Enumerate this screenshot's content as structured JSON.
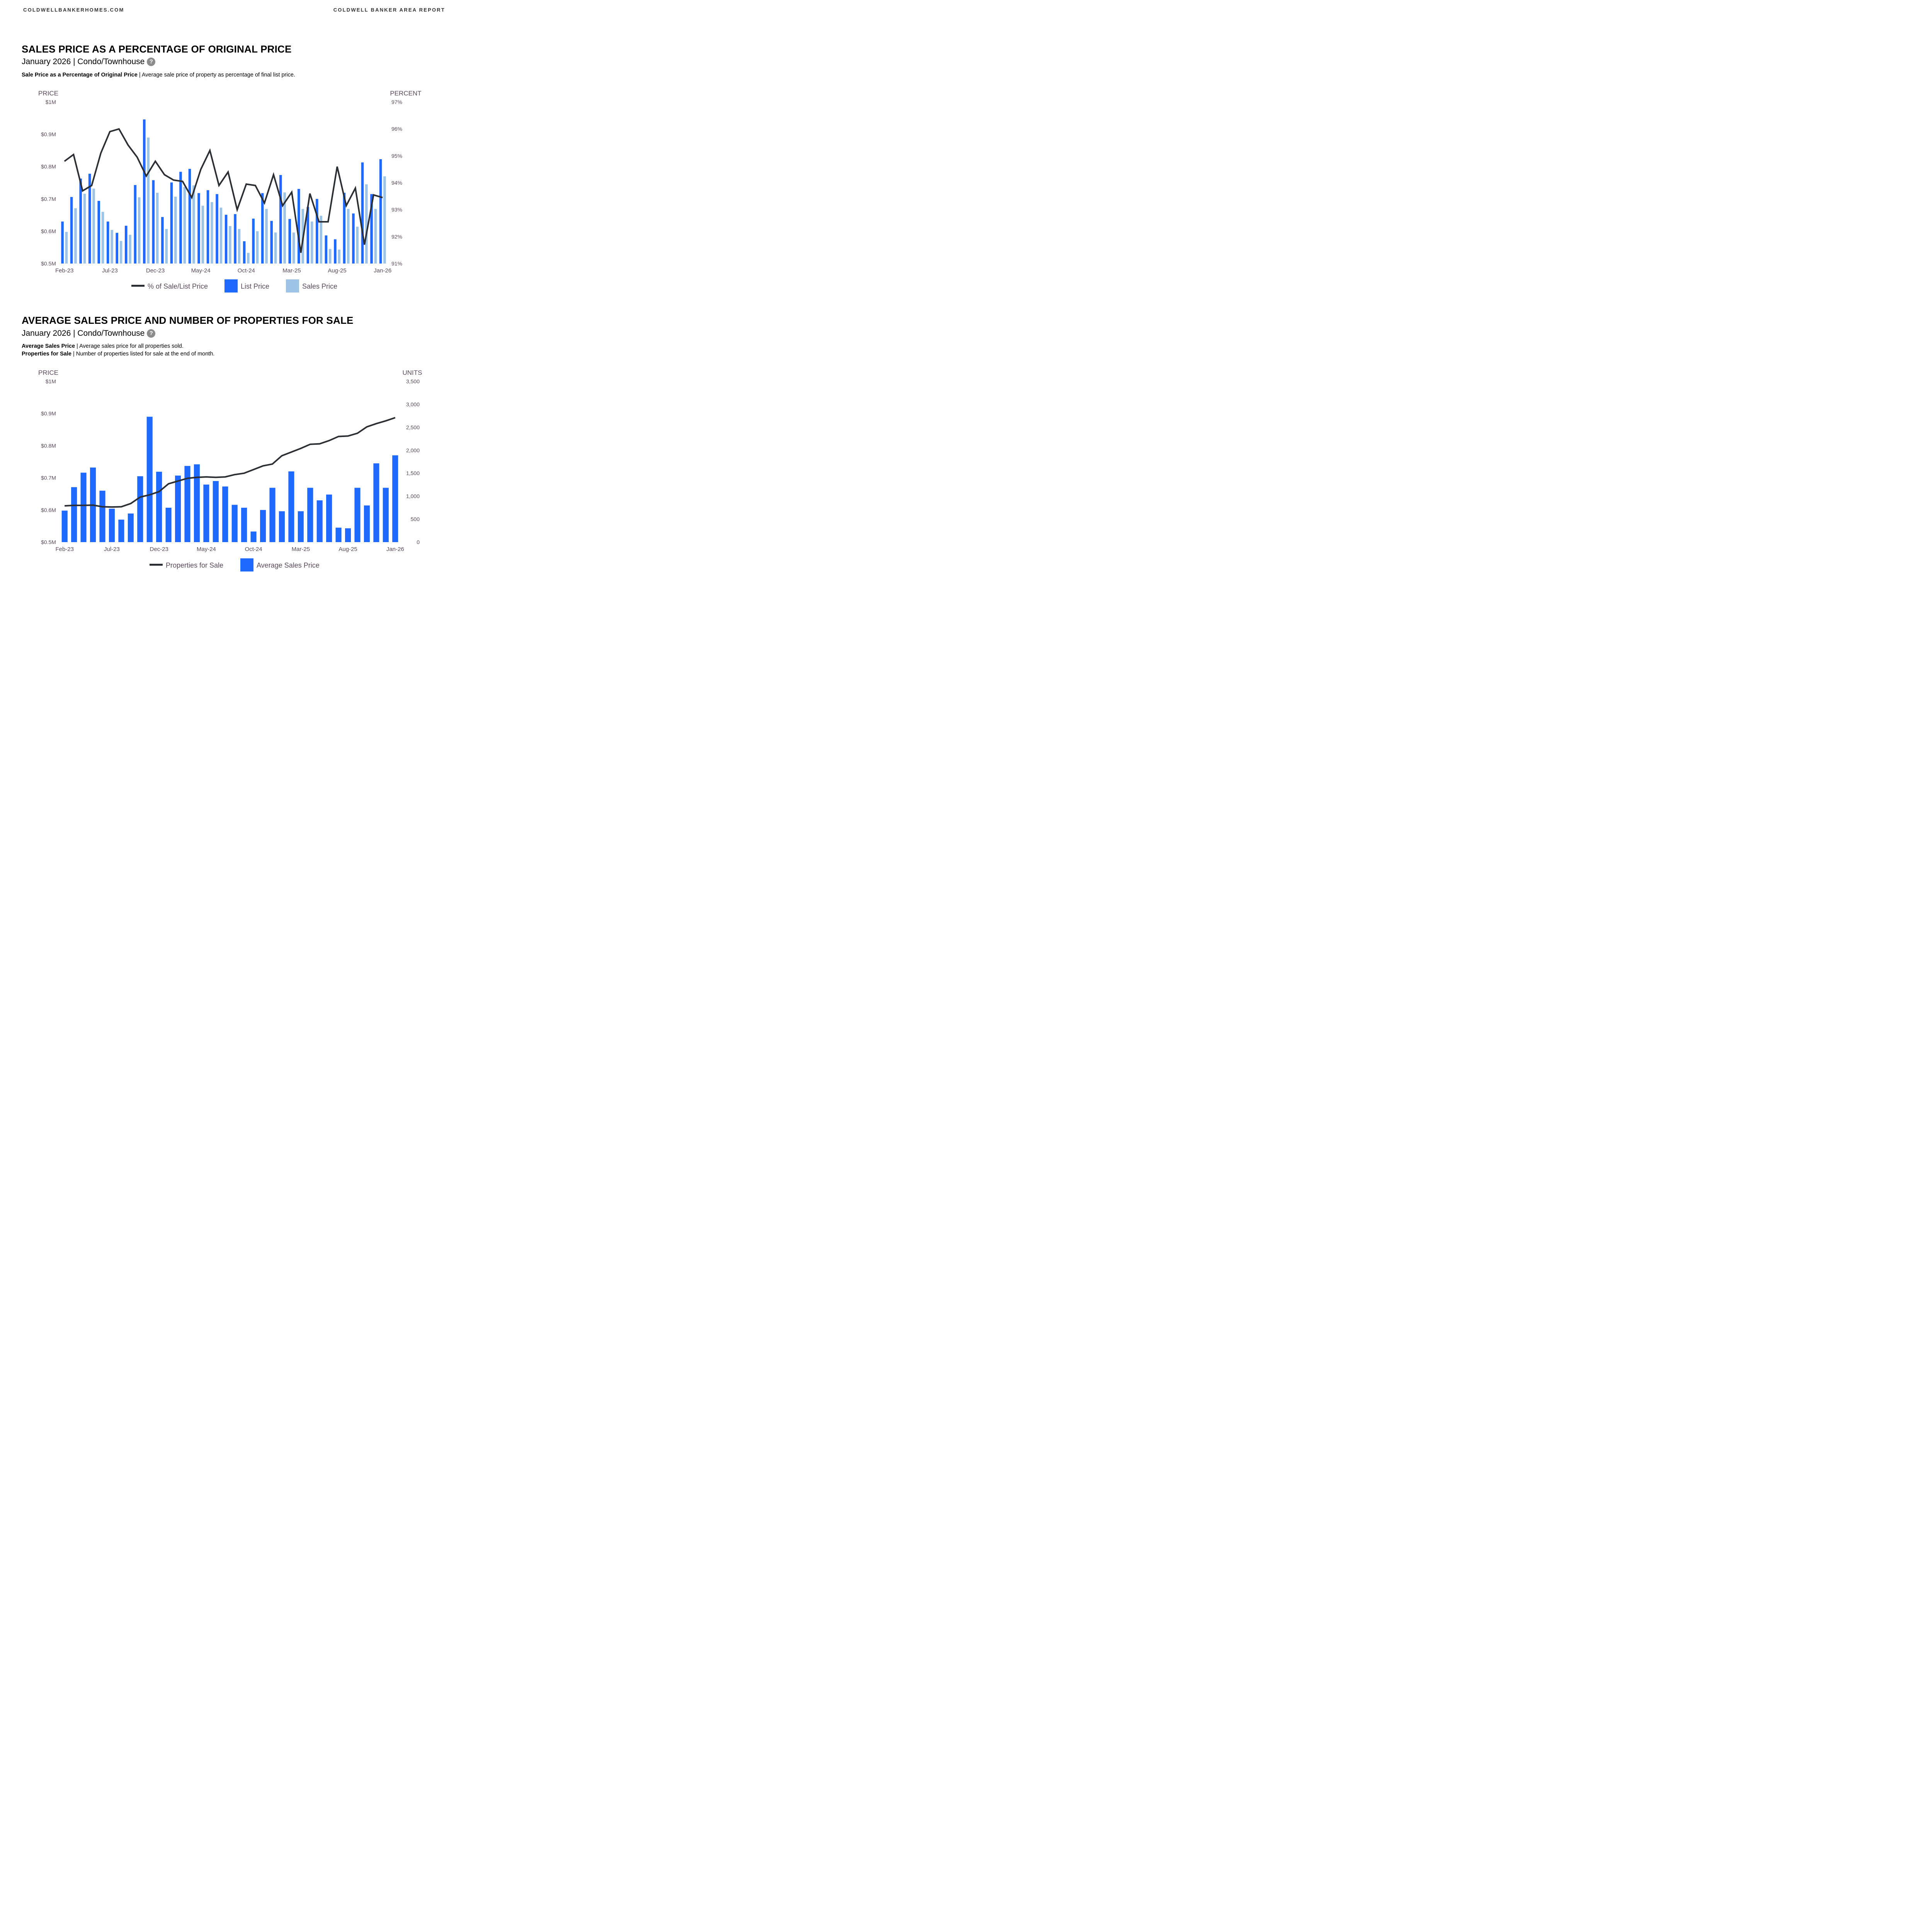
{
  "header": {
    "left": "COLDWELLBANKERHOMES.COM",
    "right": "COLDWELL BANKER AREA REPORT"
  },
  "colors": {
    "list_price": "#1f69ff",
    "sales_price": "#9dc3e6",
    "line": "#2b2f33",
    "axis_text": "#5a4a5a"
  },
  "section1": {
    "title": "SALES PRICE AS A PERCENTAGE OF ORIGINAL PRICE",
    "subtitle": "January 2026 | Condo/Townhouse",
    "help_icon": "?",
    "desc_bold": "Sale Price as a Percentage of Original Price",
    "desc_text": " | Average sale price of property as percentage of final list price."
  },
  "section2": {
    "title": "AVERAGE SALES PRICE AND NUMBER OF PROPERTIES FOR SALE",
    "subtitle": "January 2026 | Condo/Townhouse",
    "help_icon": "?",
    "desc1_bold": "Average Sales Price",
    "desc1_text": " | Average sales price for all properties sold.",
    "desc2_bold": "Properties for Sale",
    "desc2_text": " | Number of properties listed for sale at the end of month."
  },
  "chart_data": [
    {
      "type": "bar",
      "title": "Sales Price as a Percentage of Original Price",
      "left_axis_title": "PRICE",
      "right_axis_title": "PERCENT",
      "left_ticks": [
        "$0.5M",
        "$0.6M",
        "$0.7M",
        "$0.8M",
        "$0.9M",
        "$1M"
      ],
      "left_tick_values": [
        0.5,
        0.6,
        0.7,
        0.8,
        0.9,
        1.0
      ],
      "right_ticks": [
        "91%",
        "92%",
        "93%",
        "94%",
        "95%",
        "96%",
        "97%"
      ],
      "right_tick_values": [
        91,
        92,
        93,
        94,
        95,
        96,
        97
      ],
      "ylim_left": [
        0.5,
        1.0
      ],
      "ylim_right": [
        91,
        97
      ],
      "x_tick_labels": [
        "Feb-23",
        "Jul-23",
        "Dec-23",
        "May-24",
        "Oct-24",
        "Mar-25",
        "Aug-25",
        "Jan-26"
      ],
      "x_tick_indices": [
        0,
        5,
        10,
        15,
        20,
        25,
        30,
        35
      ],
      "categories": [
        "Feb-23",
        "Mar-23",
        "Apr-23",
        "May-23",
        "Jun-23",
        "Jul-23",
        "Aug-23",
        "Sep-23",
        "Oct-23",
        "Nov-23",
        "Dec-23",
        "Jan-24",
        "Feb-24",
        "Mar-24",
        "Apr-24",
        "May-24",
        "Jun-24",
        "Jul-24",
        "Aug-24",
        "Sep-24",
        "Oct-24",
        "Nov-24",
        "Dec-24",
        "Jan-25",
        "Feb-25",
        "Mar-25",
        "Apr-25",
        "May-25",
        "Jun-25",
        "Jul-25",
        "Aug-25",
        "Sep-25",
        "Oct-25",
        "Nov-25",
        "Dec-25",
        "Jan-26"
      ],
      "series": [
        {
          "name": "List Price",
          "kind": "bar",
          "axis": "left",
          "unit": "$M",
          "values": [
            0.63,
            0.706,
            0.763,
            0.778,
            0.694,
            0.63,
            0.595,
            0.617,
            0.743,
            0.946,
            0.758,
            0.644,
            0.751,
            0.784,
            0.793,
            0.718,
            0.727,
            0.715,
            0.651,
            0.653,
            0.569,
            0.639,
            0.718,
            0.632,
            0.774,
            0.638,
            0.731,
            0.675,
            0.7,
            0.587,
            0.575,
            0.719,
            0.655,
            0.813,
            0.715,
            0.823
          ]
        },
        {
          "name": "Sales Price",
          "kind": "bar",
          "axis": "left",
          "unit": "$M",
          "values": [
            0.598,
            0.671,
            0.716,
            0.732,
            0.66,
            0.604,
            0.57,
            0.589,
            0.705,
            0.89,
            0.719,
            0.607,
            0.707,
            0.737,
            0.742,
            0.679,
            0.69,
            0.673,
            0.616,
            0.607,
            0.533,
            0.6,
            0.669,
            0.596,
            0.72,
            0.596,
            0.669,
            0.63,
            0.648,
            0.545,
            0.543,
            0.669,
            0.614,
            0.745,
            0.669,
            0.77
          ]
        },
        {
          "name": "% of Sale/List Price",
          "kind": "line",
          "axis": "right",
          "unit": "%",
          "values": [
            94.8,
            95.05,
            93.7,
            93.9,
            95.1,
            95.9,
            96.0,
            95.4,
            94.95,
            94.25,
            94.8,
            94.3,
            94.1,
            94.05,
            93.45,
            94.5,
            95.2,
            93.9,
            94.4,
            93.0,
            93.95,
            93.9,
            93.25,
            94.3,
            93.15,
            93.65,
            91.4,
            93.6,
            92.55,
            92.55,
            94.6,
            93.15,
            93.8,
            91.7,
            93.55,
            93.45
          ]
        }
      ],
      "legend": [
        "% of Sale/List Price",
        "List Price",
        "Sales Price"
      ],
      "legend_position": "bottom-center",
      "grid": false
    },
    {
      "type": "bar",
      "title": "Average Sales Price and Number of Properties for Sale",
      "left_axis_title": "PRICE",
      "right_axis_title": "UNITS",
      "left_ticks": [
        "$0.5M",
        "$0.6M",
        "$0.7M",
        "$0.8M",
        "$0.9M",
        "$1M"
      ],
      "left_tick_values": [
        0.5,
        0.6,
        0.7,
        0.8,
        0.9,
        1.0
      ],
      "right_ticks": [
        "0",
        "500",
        "1,000",
        "1,500",
        "2,000",
        "2,500",
        "3,000",
        "3,500"
      ],
      "right_tick_values": [
        0,
        500,
        1000,
        1500,
        2000,
        2500,
        3000,
        3500
      ],
      "ylim_left": [
        0.5,
        1.0
      ],
      "ylim_right": [
        0,
        3500
      ],
      "x_tick_labels": [
        "Feb-23",
        "Jul-23",
        "Dec-23",
        "May-24",
        "Oct-24",
        "Mar-25",
        "Aug-25",
        "Jan-26"
      ],
      "x_tick_indices": [
        0,
        5,
        10,
        15,
        20,
        25,
        30,
        35
      ],
      "categories": [
        "Feb-23",
        "Mar-23",
        "Apr-23",
        "May-23",
        "Jun-23",
        "Jul-23",
        "Aug-23",
        "Sep-23",
        "Oct-23",
        "Nov-23",
        "Dec-23",
        "Jan-24",
        "Feb-24",
        "Mar-24",
        "Apr-24",
        "May-24",
        "Jun-24",
        "Jul-24",
        "Aug-24",
        "Sep-24",
        "Oct-24",
        "Nov-24",
        "Dec-24",
        "Jan-25",
        "Feb-25",
        "Mar-25",
        "Apr-25",
        "May-25",
        "Jun-25",
        "Jul-25",
        "Aug-25",
        "Sep-25",
        "Oct-25",
        "Nov-25",
        "Dec-25",
        "Jan-26"
      ],
      "series": [
        {
          "name": "Average Sales Price",
          "kind": "bar",
          "axis": "left",
          "unit": "$M",
          "values": [
            0.598,
            0.671,
            0.716,
            0.732,
            0.66,
            0.604,
            0.57,
            0.589,
            0.705,
            0.89,
            0.719,
            0.607,
            0.707,
            0.737,
            0.742,
            0.679,
            0.69,
            0.673,
            0.616,
            0.607,
            0.533,
            0.6,
            0.669,
            0.596,
            0.72,
            0.596,
            0.669,
            0.63,
            0.648,
            0.545,
            0.543,
            0.669,
            0.614,
            0.745,
            0.669,
            0.77
          ]
        },
        {
          "name": "Properties for Sale",
          "kind": "line",
          "axis": "right",
          "unit": "units",
          "values": [
            790,
            800,
            800,
            805,
            770,
            765,
            770,
            840,
            980,
            1030,
            1100,
            1270,
            1330,
            1390,
            1410,
            1420,
            1410,
            1420,
            1470,
            1500,
            1580,
            1660,
            1700,
            1880,
            1960,
            2040,
            2130,
            2140,
            2210,
            2300,
            2310,
            2370,
            2510,
            2580,
            2640,
            2710
          ]
        }
      ],
      "legend": [
        "Properties for Sale",
        "Average Sales Price"
      ],
      "legend_position": "bottom-center",
      "grid": false
    }
  ]
}
